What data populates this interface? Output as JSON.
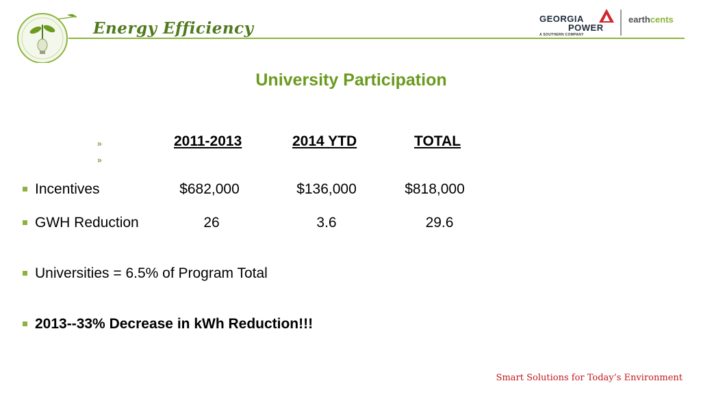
{
  "header": {
    "brand_title": "Energy Efficiency",
    "partner_word1": "GEORGIA",
    "partner_word2": "POWER",
    "partner_sub": "A SOUTHERN COMPANY",
    "earthcents_a": "earth",
    "earthcents_b": "cents"
  },
  "slide": {
    "title": "University Participation",
    "sub_bullet": "»",
    "columns": [
      "2011-2013",
      "2014 YTD",
      "TOTAL"
    ],
    "rows": [
      {
        "label": "Incentives",
        "values": [
          "$682,000",
          "$136,000",
          "$818,000"
        ]
      },
      {
        "label": "GWH Reduction",
        "values": [
          "26",
          "3.6",
          "29.6"
        ]
      }
    ],
    "bullet_universities": "Universities = 6.5% of Program Total",
    "bullet_decrease": "2013--33% Decrease in kWh Reduction!!!"
  },
  "footer": {
    "tagline": "Smart Solutions for Today’s Environment"
  },
  "colors": {
    "accent_green": "#8cb43c",
    "title_green": "#6a9a1e",
    "footer_red": "#c0161c"
  }
}
